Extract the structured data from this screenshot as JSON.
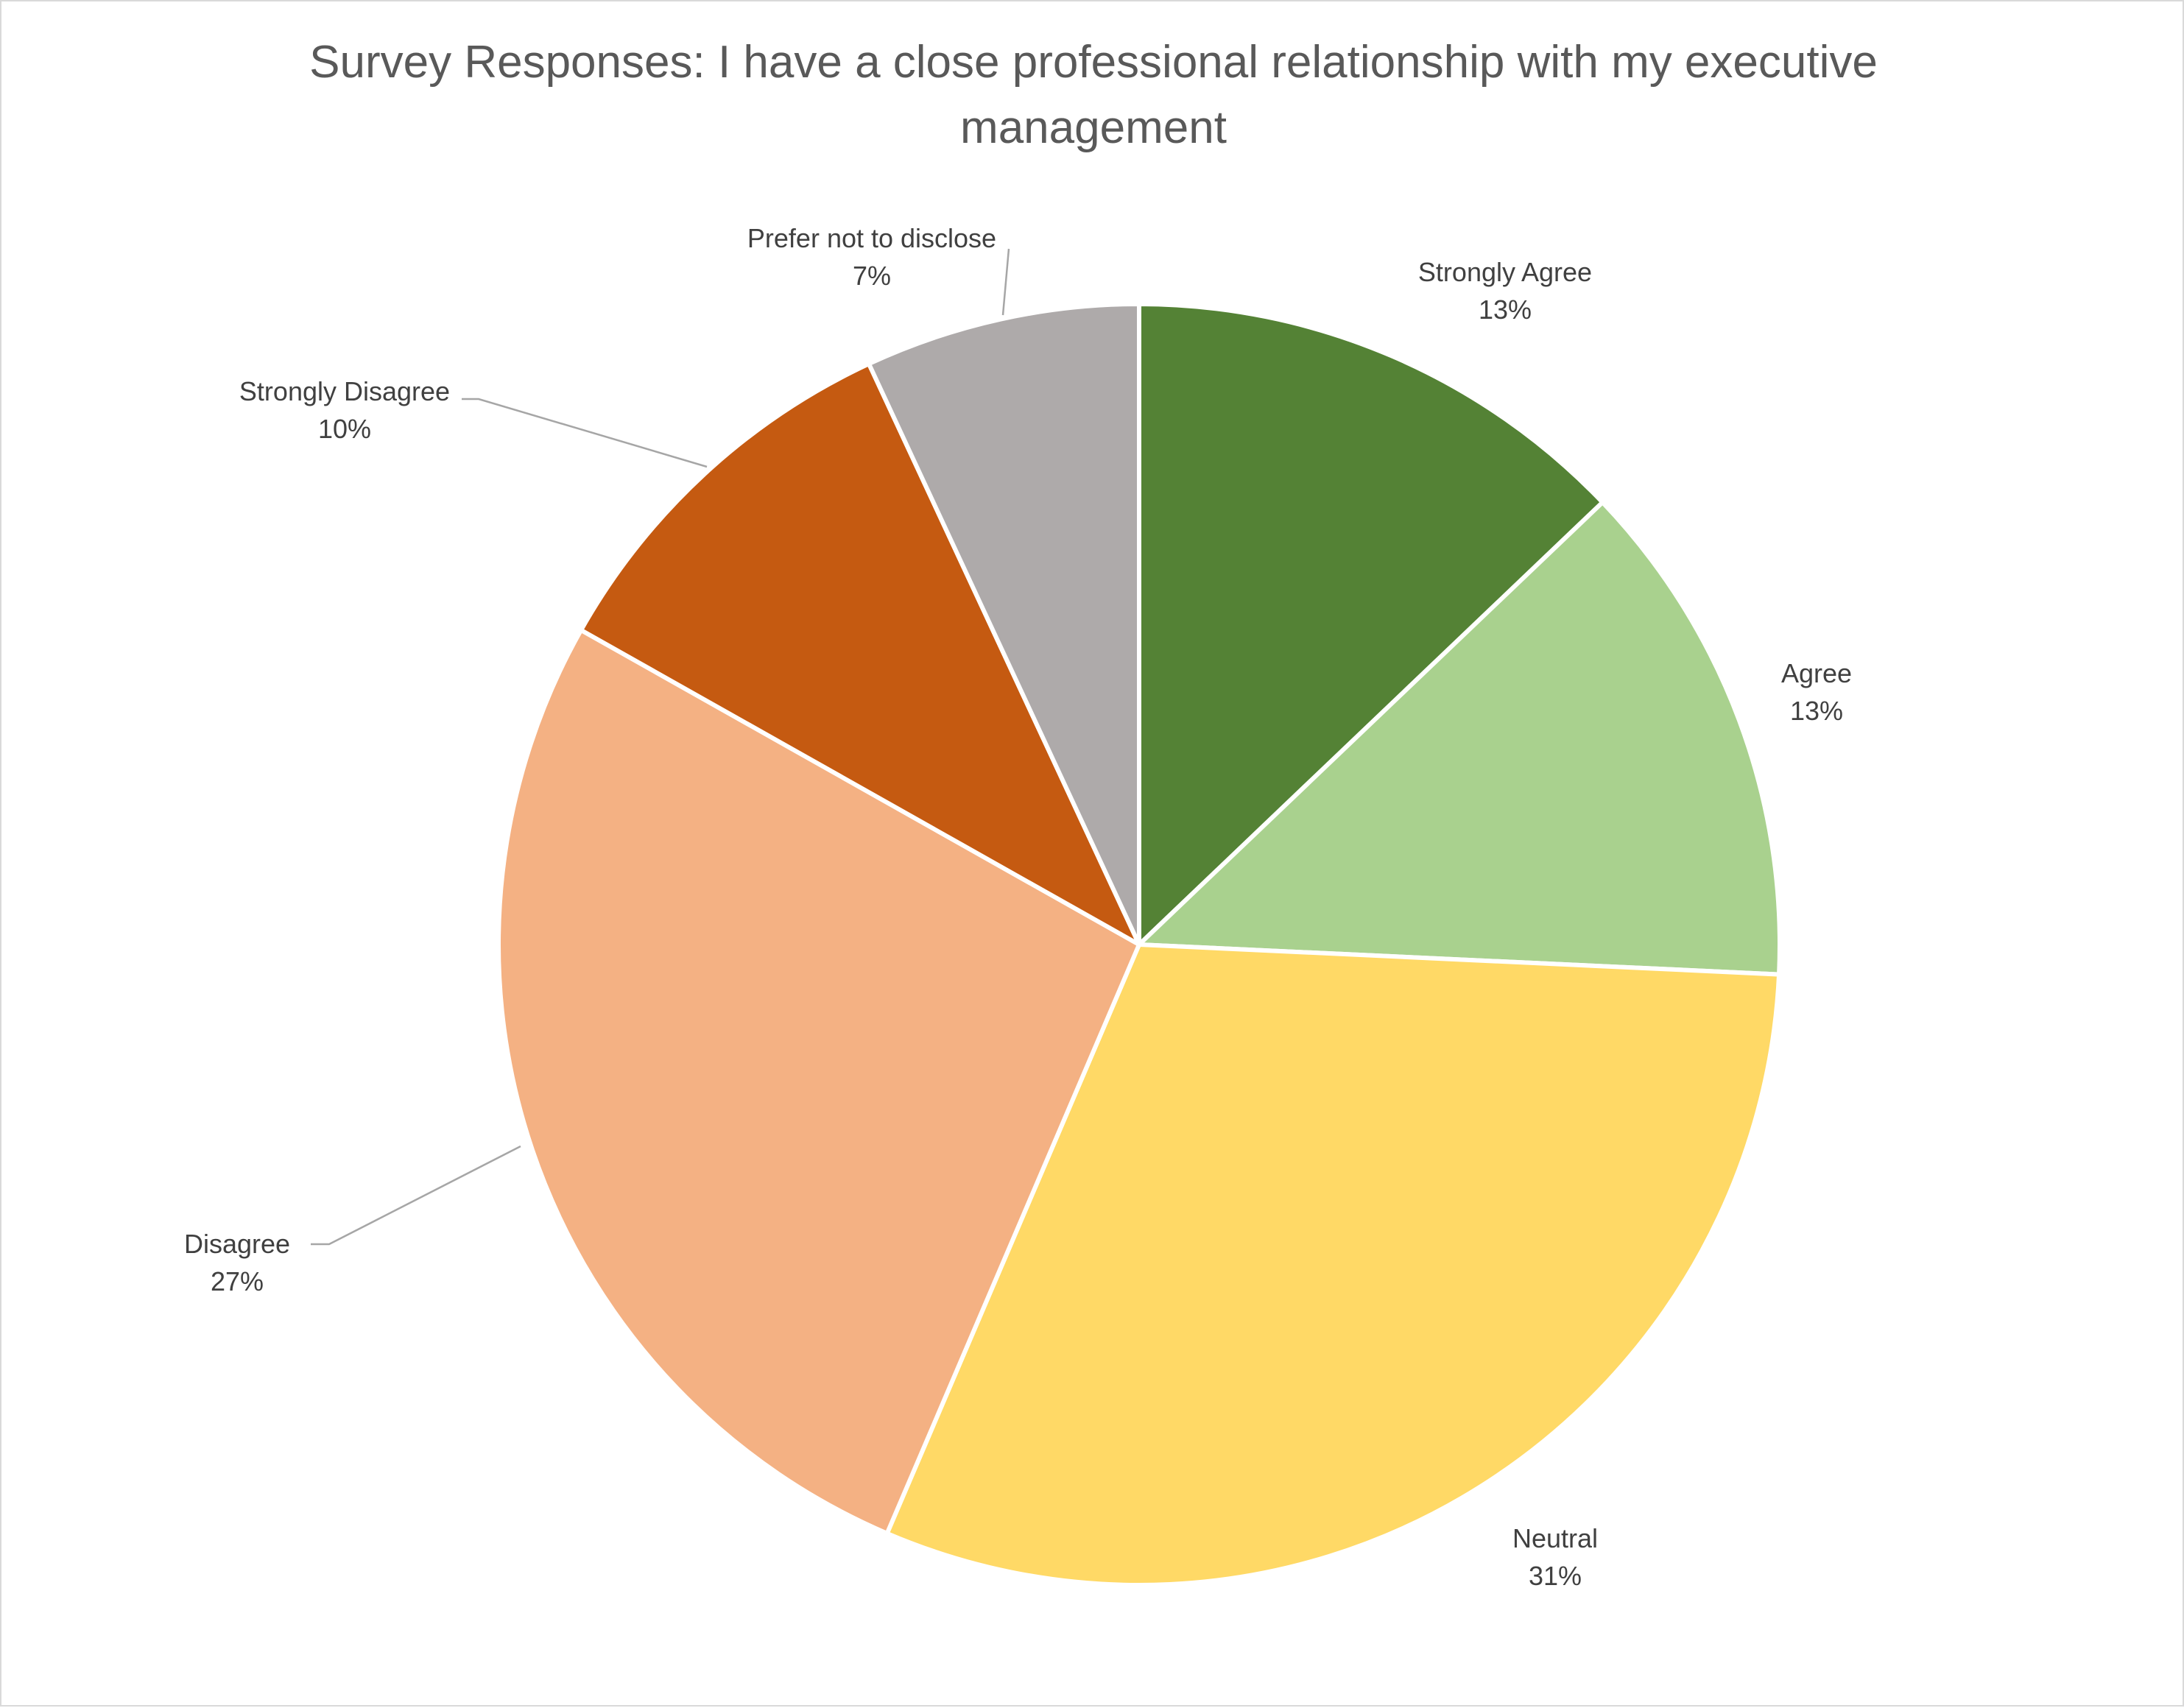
{
  "chart_data": {
    "type": "pie",
    "title": "Survey Responses: I have a close professional relationship with my executive management",
    "title_lines": [
      "Survey Responses: I have a close professional relationship with my executive",
      "management"
    ],
    "categories": [
      "Strongly Agree",
      "Agree",
      "Neutral",
      "Disagree",
      "Strongly Disagree",
      "Prefer not to disclose"
    ],
    "values": [
      13,
      13,
      31,
      27,
      10,
      7
    ],
    "value_labels": [
      "13%",
      "13%",
      "31%",
      "27%",
      "10%",
      "7%"
    ],
    "colors": [
      "#548235",
      "#a9d18e",
      "#ffd966",
      "#f4b183",
      "#c55a11",
      "#aeaaaa"
    ],
    "legend": "none",
    "data_labels": "category name and percentage, outside end with leader lines"
  }
}
